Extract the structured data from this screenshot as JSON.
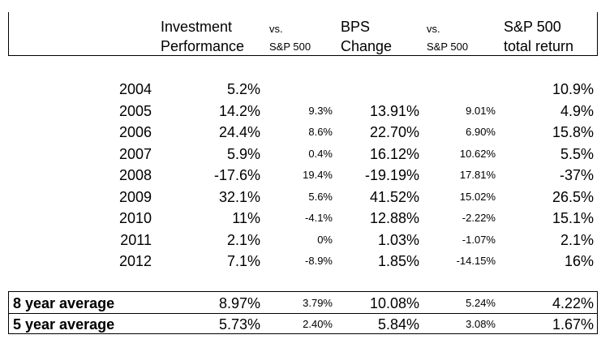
{
  "header": {
    "col1": [
      "Investment",
      "Performance"
    ],
    "col2": [
      "vs.",
      "S&P 500"
    ],
    "col3": [
      "BPS",
      "Change"
    ],
    "col4": [
      "vs.",
      "S&P 500"
    ],
    "col5": [
      "S&P 500",
      "total return"
    ]
  },
  "rows": [
    {
      "year": "2004",
      "inv": "5.2%",
      "vs1": "",
      "bps": "",
      "vs2": "",
      "sp": "10.9%"
    },
    {
      "year": "2005",
      "inv": "14.2%",
      "vs1": "9.3%",
      "bps": "13.91%",
      "vs2": "9.01%",
      "sp": "4.9%"
    },
    {
      "year": "2006",
      "inv": "24.4%",
      "vs1": "8.6%",
      "bps": "22.70%",
      "vs2": "6.90%",
      "sp": "15.8%"
    },
    {
      "year": "2007",
      "inv": "5.9%",
      "vs1": "0.4%",
      "bps": "16.12%",
      "vs2": "10.62%",
      "sp": "5.5%"
    },
    {
      "year": "2008",
      "inv": "-17.6%",
      "vs1": "19.4%",
      "bps": "-19.19%",
      "vs2": "17.81%",
      "sp": "-37%"
    },
    {
      "year": "2009",
      "inv": "32.1%",
      "vs1": "5.6%",
      "bps": "41.52%",
      "vs2": "15.02%",
      "sp": "26.5%"
    },
    {
      "year": "2010",
      "inv": "11%",
      "vs1": "-4.1%",
      "bps": "12.88%",
      "vs2": "-2.22%",
      "sp": "15.1%"
    },
    {
      "year": "2011",
      "inv": "2.1%",
      "vs1": "0%",
      "bps": "1.03%",
      "vs2": "-1.07%",
      "sp": "2.1%"
    },
    {
      "year": "2012",
      "inv": "7.1%",
      "vs1": "-8.9%",
      "bps": "1.85%",
      "vs2": "-14.15%",
      "sp": "16%"
    }
  ],
  "summary": [
    {
      "label": "8 year average",
      "inv": "8.97%",
      "vs1": "3.79%",
      "bps": "10.08%",
      "vs2": "5.24%",
      "sp": "4.22%"
    },
    {
      "label": "5 year average",
      "inv": "5.73%",
      "vs1": "2.40%",
      "bps": "5.84%",
      "vs2": "3.08%",
      "sp": "1.67%"
    }
  ]
}
